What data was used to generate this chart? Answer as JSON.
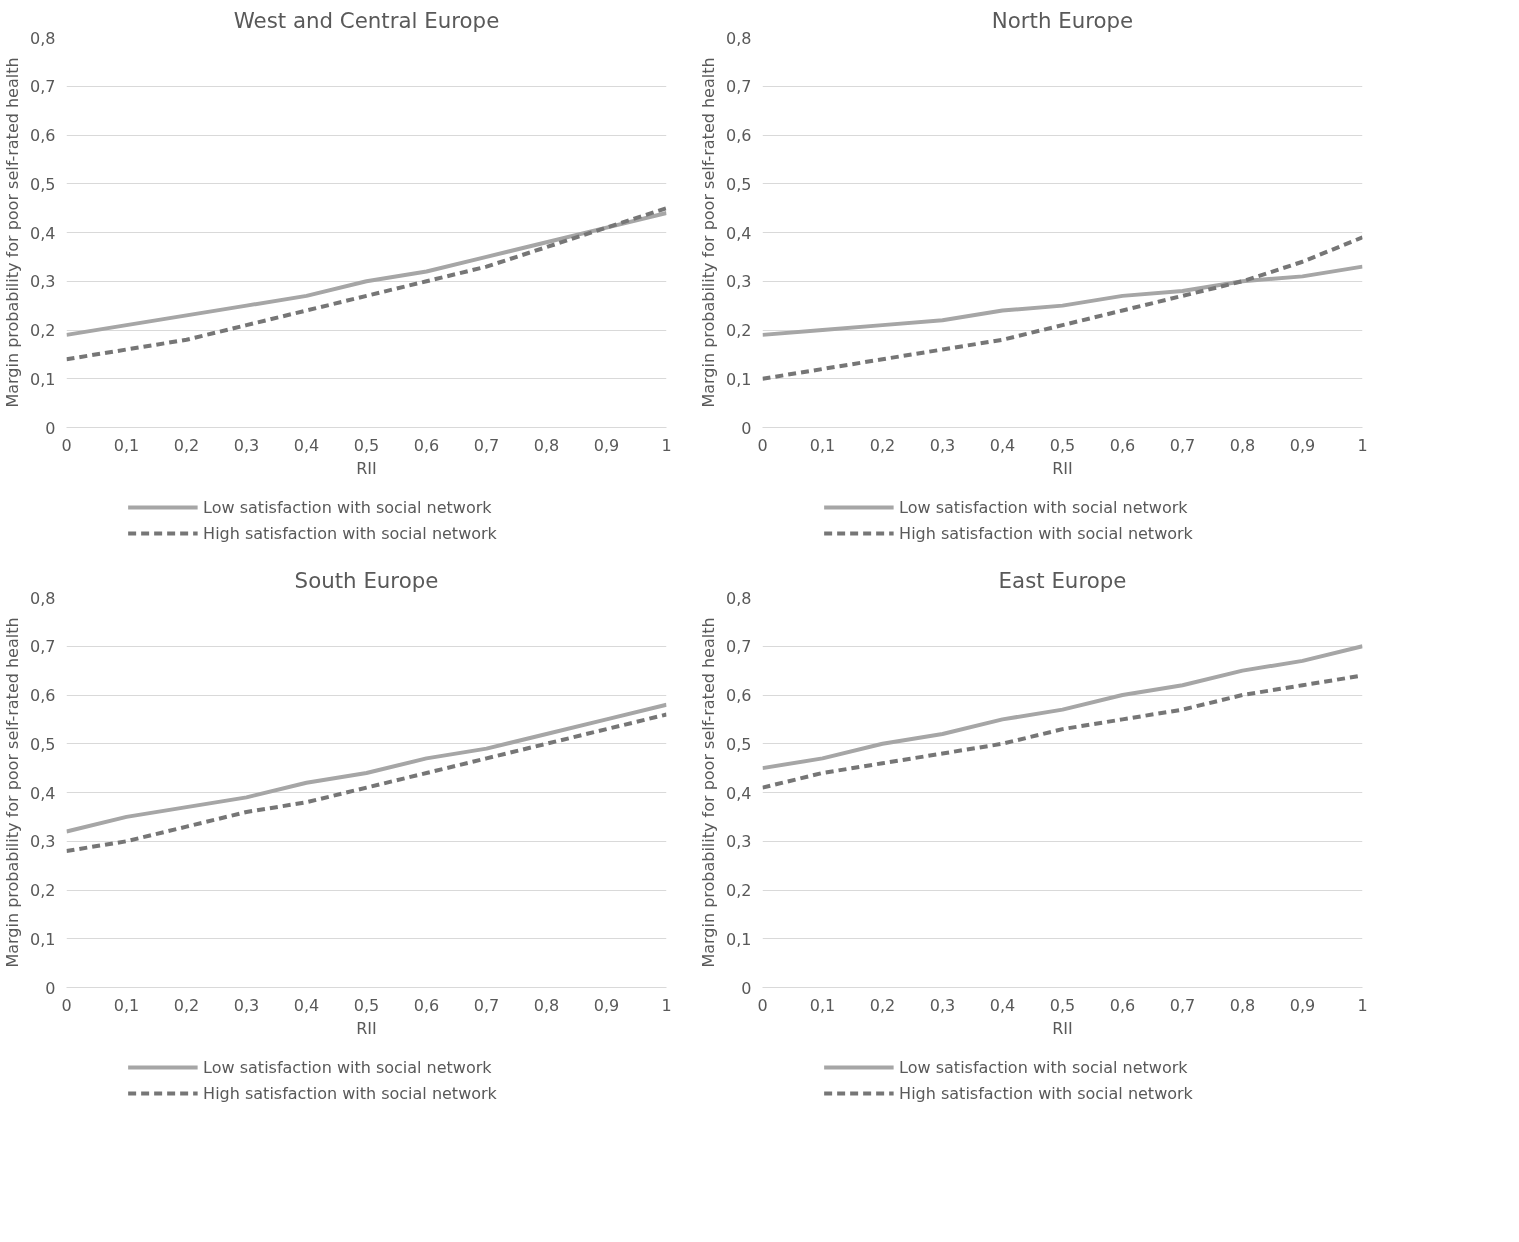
{
  "chart_data": [
    {
      "type": "line",
      "title": "West and Central Europe",
      "xlabel": "RII",
      "ylabel": "Margin probability for poor self-rated health",
      "x": [
        0,
        0.1,
        0.2,
        0.3,
        0.4,
        0.5,
        0.6,
        0.7,
        0.8,
        0.9,
        1
      ],
      "xlim": [
        0,
        1
      ],
      "ylim": [
        0,
        0.8
      ],
      "xticks": [
        0,
        {
          "value": 0.1,
          "label": "0,1"
        },
        {
          "value": 0.2,
          "label": "0,2"
        },
        {
          "value": 0.3,
          "label": "0,3"
        },
        {
          "value": 0.4,
          "label": "0,4"
        },
        {
          "value": 0.5,
          "label": "0,5"
        },
        {
          "value": 0.6,
          "label": "0,6"
        },
        {
          "value": 0.7,
          "label": "0,7"
        },
        {
          "value": 0.8,
          "label": "0,8"
        },
        {
          "value": 0.9,
          "label": "0,9"
        },
        1
      ],
      "yticks": [
        0,
        {
          "value": 0.1,
          "label": "0,1"
        },
        {
          "value": 0.2,
          "label": "0,2"
        },
        {
          "value": 0.3,
          "label": "0,3"
        },
        {
          "value": 0.4,
          "label": "0,4"
        },
        {
          "value": 0.5,
          "label": "0,5"
        },
        {
          "value": 0.6,
          "label": "0,6"
        },
        {
          "value": 0.7,
          "label": "0,7"
        },
        {
          "value": 0.8,
          "label": "0,8"
        }
      ],
      "grid": "y",
      "legend": "bottom",
      "series": [
        {
          "name": "Low satisfaction with social network",
          "color": "#a6a6a6",
          "line_style": "solid",
          "values": [
            0.19,
            0.21,
            0.23,
            0.25,
            0.27,
            0.3,
            0.32,
            0.35,
            0.38,
            0.41,
            0.44
          ]
        },
        {
          "name": "High satisfaction with social network",
          "color": "#767676",
          "line_style": "dashed",
          "values": [
            0.14,
            0.16,
            0.18,
            0.21,
            0.24,
            0.27,
            0.3,
            0.33,
            0.37,
            0.41,
            0.45
          ]
        }
      ]
    },
    {
      "type": "line",
      "title": "North Europe",
      "xlabel": "RII",
      "ylabel": "Margin probability for poor self-rated health",
      "x": [
        0,
        0.1,
        0.2,
        0.3,
        0.4,
        0.5,
        0.6,
        0.7,
        0.8,
        0.9,
        1
      ],
      "xlim": [
        0,
        1
      ],
      "ylim": [
        0,
        0.8
      ],
      "xticks": [
        0,
        {
          "value": 0.1,
          "label": "0,1"
        },
        {
          "value": 0.2,
          "label": "0,2"
        },
        {
          "value": 0.3,
          "label": "0,3"
        },
        {
          "value": 0.4,
          "label": "0,4"
        },
        {
          "value": 0.5,
          "label": "0,5"
        },
        {
          "value": 0.6,
          "label": "0,6"
        },
        {
          "value": 0.7,
          "label": "0,7"
        },
        {
          "value": 0.8,
          "label": "0,8"
        },
        {
          "value": 0.9,
          "label": "0,9"
        },
        1
      ],
      "yticks": [
        0,
        {
          "value": 0.1,
          "label": "0,1"
        },
        {
          "value": 0.2,
          "label": "0,2"
        },
        {
          "value": 0.3,
          "label": "0,3"
        },
        {
          "value": 0.4,
          "label": "0,4"
        },
        {
          "value": 0.5,
          "label": "0,5"
        },
        {
          "value": 0.6,
          "label": "0,6"
        },
        {
          "value": 0.7,
          "label": "0,7"
        },
        {
          "value": 0.8,
          "label": "0,8"
        }
      ],
      "grid": "y",
      "legend": "bottom",
      "series": [
        {
          "name": "Low satisfaction with social network",
          "color": "#a6a6a6",
          "line_style": "solid",
          "values": [
            0.19,
            0.2,
            0.21,
            0.22,
            0.24,
            0.25,
            0.27,
            0.28,
            0.3,
            0.31,
            0.33
          ]
        },
        {
          "name": "High satisfaction with social network",
          "color": "#767676",
          "line_style": "dashed",
          "values": [
            0.1,
            0.12,
            0.14,
            0.16,
            0.18,
            0.21,
            0.24,
            0.27,
            0.3,
            0.34,
            0.39
          ]
        }
      ]
    },
    {
      "type": "line",
      "title": "South Europe",
      "xlabel": "RII",
      "ylabel": "Margin probability for poor self-rated health",
      "x": [
        0,
        0.1,
        0.2,
        0.3,
        0.4,
        0.5,
        0.6,
        0.7,
        0.8,
        0.9,
        1
      ],
      "xlim": [
        0,
        1
      ],
      "ylim": [
        0,
        0.8
      ],
      "xticks": [
        0,
        {
          "value": 0.1,
          "label": "0,1"
        },
        {
          "value": 0.2,
          "label": "0,2"
        },
        {
          "value": 0.3,
          "label": "0,3"
        },
        {
          "value": 0.4,
          "label": "0,4"
        },
        {
          "value": 0.5,
          "label": "0,5"
        },
        {
          "value": 0.6,
          "label": "0,6"
        },
        {
          "value": 0.7,
          "label": "0,7"
        },
        {
          "value": 0.8,
          "label": "0,8"
        },
        {
          "value": 0.9,
          "label": "0,9"
        },
        1
      ],
      "yticks": [
        0,
        {
          "value": 0.1,
          "label": "0,1"
        },
        {
          "value": 0.2,
          "label": "0,2"
        },
        {
          "value": 0.3,
          "label": "0,3"
        },
        {
          "value": 0.4,
          "label": "0,4"
        },
        {
          "value": 0.5,
          "label": "0,5"
        },
        {
          "value": 0.6,
          "label": "0,6"
        },
        {
          "value": 0.7,
          "label": "0,7"
        },
        {
          "value": 0.8,
          "label": "0,8"
        }
      ],
      "grid": "y",
      "legend": "bottom",
      "series": [
        {
          "name": "Low satisfaction with social network",
          "color": "#a6a6a6",
          "line_style": "solid",
          "values": [
            0.32,
            0.35,
            0.37,
            0.39,
            0.42,
            0.44,
            0.47,
            0.49,
            0.52,
            0.55,
            0.58
          ]
        },
        {
          "name": "High satisfaction with social network",
          "color": "#767676",
          "line_style": "dashed",
          "values": [
            0.28,
            0.3,
            0.33,
            0.36,
            0.38,
            0.41,
            0.44,
            0.47,
            0.5,
            0.53,
            0.56
          ]
        }
      ]
    },
    {
      "type": "line",
      "title": "East Europe",
      "xlabel": "RII",
      "ylabel": "Margin probability for poor self-rated health",
      "x": [
        0,
        0.1,
        0.2,
        0.3,
        0.4,
        0.5,
        0.6,
        0.7,
        0.8,
        0.9,
        1
      ],
      "xlim": [
        0,
        1
      ],
      "ylim": [
        0,
        0.8
      ],
      "xticks": [
        0,
        {
          "value": 0.1,
          "label": "0,1"
        },
        {
          "value": 0.2,
          "label": "0,2"
        },
        {
          "value": 0.3,
          "label": "0,3"
        },
        {
          "value": 0.4,
          "label": "0,4"
        },
        {
          "value": 0.5,
          "label": "0,5"
        },
        {
          "value": 0.6,
          "label": "0,6"
        },
        {
          "value": 0.7,
          "label": "0,7"
        },
        {
          "value": 0.8,
          "label": "0,8"
        },
        {
          "value": 0.9,
          "label": "0,9"
        },
        1
      ],
      "yticks": [
        0,
        {
          "value": 0.1,
          "label": "0,1"
        },
        {
          "value": 0.2,
          "label": "0,2"
        },
        {
          "value": 0.3,
          "label": "0,3"
        },
        {
          "value": 0.4,
          "label": "0,4"
        },
        {
          "value": 0.5,
          "label": "0,5"
        },
        {
          "value": 0.6,
          "label": "0,6"
        },
        {
          "value": 0.7,
          "label": "0,7"
        },
        {
          "value": 0.8,
          "label": "0,8"
        }
      ],
      "grid": "y",
      "legend": "bottom",
      "series": [
        {
          "name": "Low satisfaction with social network",
          "color": "#a6a6a6",
          "line_style": "solid",
          "values": [
            0.45,
            0.47,
            0.5,
            0.52,
            0.55,
            0.57,
            0.6,
            0.62,
            0.65,
            0.67,
            0.7
          ]
        },
        {
          "name": "High satisfaction with social network",
          "color": "#767676",
          "line_style": "dashed",
          "values": [
            0.41,
            0.44,
            0.46,
            0.48,
            0.5,
            0.53,
            0.55,
            0.57,
            0.6,
            0.62,
            0.64
          ]
        }
      ]
    }
  ]
}
